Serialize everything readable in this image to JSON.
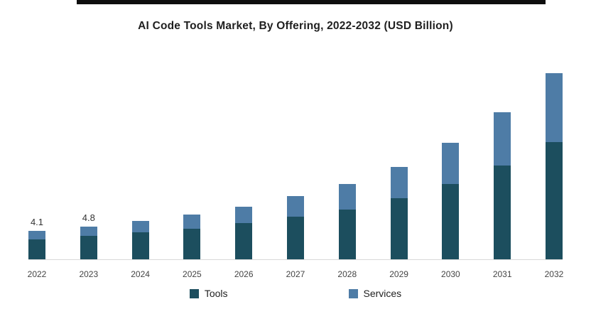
{
  "page": {
    "background": "#ffffff"
  },
  "chart_data": {
    "type": "bar",
    "stacked": true,
    "title": "AI Code Tools Market, By Offering, 2022-2032 (USD Billion)",
    "categories": [
      "2022",
      "2023",
      "2024",
      "2025",
      "2026",
      "2027",
      "2028",
      "2029",
      "2030",
      "2031",
      "2032"
    ],
    "series": [
      {
        "name": "Tools",
        "color": "#1c4e5e",
        "values": [
          2.9,
          3.4,
          3.9,
          4.5,
          5.3,
          6.2,
          7.3,
          8.9,
          11.0,
          13.7,
          17.1
        ]
      },
      {
        "name": "Services",
        "color": "#4e7ca6",
        "values": [
          1.2,
          1.4,
          1.7,
          2.0,
          2.4,
          3.0,
          3.7,
          4.6,
          6.0,
          7.8,
          10.1
        ]
      }
    ],
    "totals": [
      4.1,
      4.8,
      5.6,
      6.5,
      7.7,
      9.2,
      11.0,
      13.5,
      17.0,
      21.5,
      27.2
    ],
    "data_labels": {
      "2022": "4.1",
      "2023": "4.8"
    },
    "xlabel": "",
    "ylabel": "",
    "ylim": [
      0,
      28
    ],
    "grid": false,
    "legend_position": "bottom"
  }
}
